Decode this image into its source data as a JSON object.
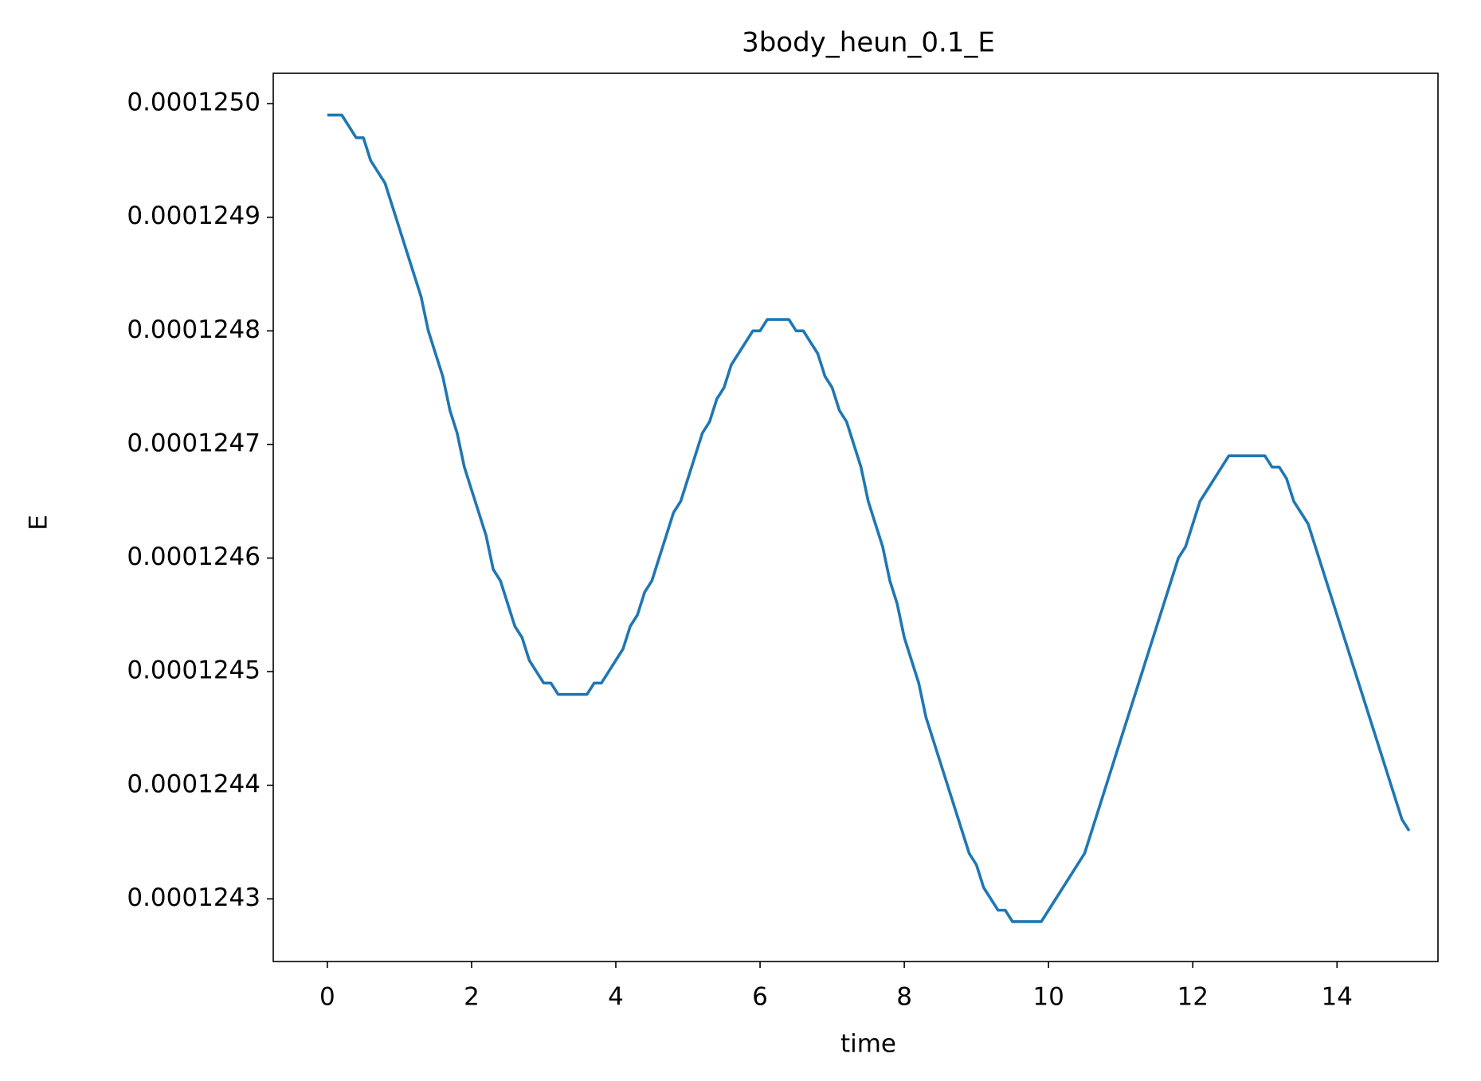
{
  "chart_data": {
    "type": "line",
    "title": "3body_heun_0.1_E",
    "x_label": "time",
    "y_label": "E",
    "x": [
      0,
      0.1,
      0.2,
      0.3,
      0.4,
      0.5,
      0.6,
      0.7,
      0.8,
      0.9,
      1,
      1.1,
      1.2,
      1.3,
      1.4,
      1.5,
      1.6,
      1.7,
      1.8,
      1.9,
      2,
      2.1,
      2.2,
      2.3,
      2.4,
      2.5,
      2.6,
      2.7,
      2.8,
      2.9,
      3,
      3.1,
      3.2,
      3.3,
      3.4,
      3.5,
      3.6,
      3.7,
      3.8,
      3.9,
      4,
      4.1,
      4.2,
      4.3,
      4.4,
      4.5,
      4.6,
      4.7,
      4.8,
      4.9,
      5,
      5.1,
      5.2,
      5.3,
      5.4,
      5.5,
      5.6,
      5.7,
      5.8,
      5.9,
      6,
      6.1,
      6.2,
      6.3,
      6.4,
      6.5,
      6.6,
      6.7,
      6.8,
      6.9,
      7,
      7.1,
      7.2,
      7.3,
      7.4,
      7.5,
      7.6,
      7.7,
      7.8,
      7.9,
      8,
      8.1,
      8.2,
      8.3,
      8.4,
      8.5,
      8.6,
      8.7,
      8.8,
      8.9,
      9,
      9.1,
      9.2,
      9.3,
      9.4,
      9.5,
      9.6,
      9.7,
      9.8,
      9.9,
      10,
      10.1,
      10.2,
      10.3,
      10.4,
      10.5,
      10.6,
      10.7,
      10.8,
      10.9,
      11,
      11.1,
      11.2,
      11.3,
      11.4,
      11.5,
      11.6,
      11.7,
      11.8,
      11.9,
      12,
      12.1,
      12.2,
      12.3,
      12.4,
      12.5,
      12.6,
      12.7,
      12.8,
      12.9,
      13,
      13.1,
      13.2,
      13.3,
      13.4,
      13.5,
      13.6,
      13.7,
      13.8,
      13.9,
      14,
      14.1,
      14.2,
      14.3,
      14.4,
      14.5,
      14.6,
      14.7,
      14.8,
      14.9,
      15
    ],
    "series": [
      {
        "color": "#1f77b4",
        "values": [
          0.00012499,
          0.00012499,
          0.00012499,
          0.00012498,
          0.00012497,
          0.00012497,
          0.00012495,
          0.00012494,
          0.00012493,
          0.00012491,
          0.00012489,
          0.00012487,
          0.00012485,
          0.00012483,
          0.0001248,
          0.00012478,
          0.00012476,
          0.00012473,
          0.00012471,
          0.00012468,
          0.00012466,
          0.00012464,
          0.00012462,
          0.00012459,
          0.00012458,
          0.00012456,
          0.00012454,
          0.00012453,
          0.00012451,
          0.0001245,
          0.00012449,
          0.00012449,
          0.00012448,
          0.00012448,
          0.00012448,
          0.00012448,
          0.00012448,
          0.00012449,
          0.00012449,
          0.0001245,
          0.00012451,
          0.00012452,
          0.00012454,
          0.00012455,
          0.00012457,
          0.00012458,
          0.0001246,
          0.00012462,
          0.00012464,
          0.00012465,
          0.00012467,
          0.00012469,
          0.00012471,
          0.00012472,
          0.00012474,
          0.00012475,
          0.00012477,
          0.00012478,
          0.00012479,
          0.0001248,
          0.0001248,
          0.00012481,
          0.00012481,
          0.00012481,
          0.00012481,
          0.0001248,
          0.0001248,
          0.00012479,
          0.00012478,
          0.00012476,
          0.00012475,
          0.00012473,
          0.00012472,
          0.0001247,
          0.00012468,
          0.00012465,
          0.00012463,
          0.00012461,
          0.00012458,
          0.00012456,
          0.00012453,
          0.00012451,
          0.00012449,
          0.00012446,
          0.00012444,
          0.00012442,
          0.0001244,
          0.00012438,
          0.00012436,
          0.00012434,
          0.00012433,
          0.00012431,
          0.0001243,
          0.00012429,
          0.00012429,
          0.00012428,
          0.00012428,
          0.00012428,
          0.00012428,
          0.00012428,
          0.00012429,
          0.0001243,
          0.00012431,
          0.00012432,
          0.00012433,
          0.00012434,
          0.00012436,
          0.00012438,
          0.0001244,
          0.00012442,
          0.00012444,
          0.00012446,
          0.00012448,
          0.0001245,
          0.00012452,
          0.00012454,
          0.00012456,
          0.00012458,
          0.0001246,
          0.00012461,
          0.00012463,
          0.00012465,
          0.00012466,
          0.00012467,
          0.00012468,
          0.00012469,
          0.00012469,
          0.00012469,
          0.00012469,
          0.00012469,
          0.00012469,
          0.00012468,
          0.00012468,
          0.00012467,
          0.00012465,
          0.00012464,
          0.00012463,
          0.00012461,
          0.00012459,
          0.00012457,
          0.00012455,
          0.00012453,
          0.00012451,
          0.00012449,
          0.00012447,
          0.00012445,
          0.00012443,
          0.00012441,
          0.00012439,
          0.00012437,
          0.00012436
        ]
      }
    ],
    "xlim": [
      -0.75,
      15.4
    ],
    "xticks": [
      0,
      2,
      4,
      6,
      8,
      10,
      12,
      14
    ],
    "ylim": [
      0.00012424486,
      0.00012502674
    ],
    "yticks": [
      0.0001243,
      0.0001244,
      0.0001245,
      0.0001246,
      0.0001247,
      0.0001248,
      0.0001249,
      {
        "value": 0.000125,
        "label": "0.0001250"
      }
    ]
  }
}
